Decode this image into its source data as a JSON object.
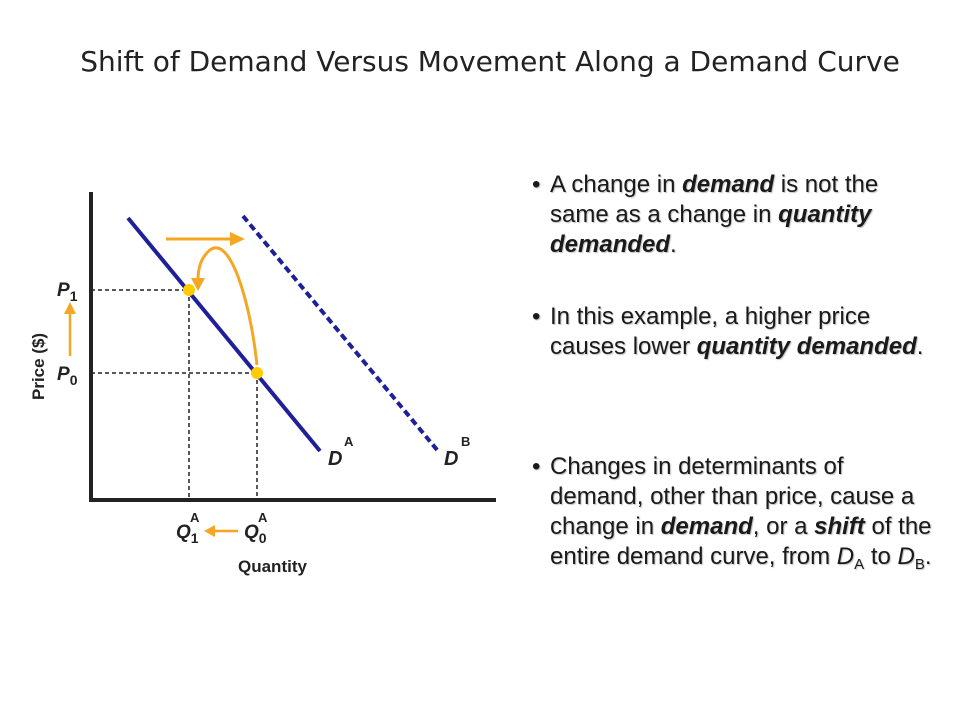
{
  "slide": {
    "title": "Shift of Demand Versus Movement Along a Demand Curve"
  },
  "diagram": {
    "y_axis_label": "Price ($)",
    "x_axis_label": "Quantity",
    "price_labels": {
      "p1": "P",
      "p1_sub": "1",
      "p0": "P",
      "p0_sub": "0"
    },
    "quantity_labels": {
      "q1": "Q",
      "q1_sub": "1",
      "q1_sup": "A",
      "q0": "Q",
      "q0_sub": "0",
      "q0_sup": "A"
    },
    "curve_labels": {
      "da": "D",
      "da_sup": "A",
      "db": "D",
      "db_sup": "B"
    },
    "colors": {
      "curve": "#1f1f99",
      "arrow": "#f5a623",
      "point": "#ffcc00",
      "axis": "#222222"
    }
  },
  "bullets": {
    "b1": {
      "t1": "A change in ",
      "t2": "demand",
      "t3": " is not the same as a change in ",
      "t4": "quantity demanded",
      "t5": "."
    },
    "b2": {
      "t1": "In this example, a higher price causes lower ",
      "t2": "quantity demanded",
      "t3": "."
    },
    "b3": {
      "t1": "Changes in determinants of demand, other than price, cause a change in ",
      "t2": "demand",
      "t3": ", or a ",
      "t4": "shift",
      "t5": " of the entire demand curve, from ",
      "t6": "D",
      "t6_sub": "A",
      "t7": " to ",
      "t8": "D",
      "t8_sub": "B",
      "t9": "."
    }
  }
}
